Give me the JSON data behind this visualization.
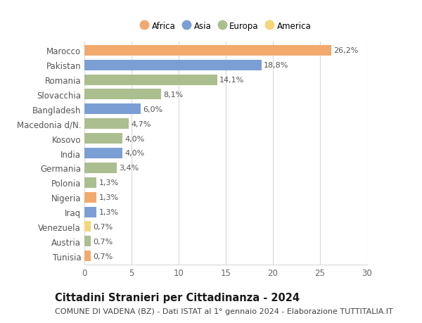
{
  "countries": [
    "Marocco",
    "Pakistan",
    "Romania",
    "Slovacchia",
    "Bangladesh",
    "Macedonia d/N.",
    "Kosovo",
    "India",
    "Germania",
    "Polonia",
    "Nigeria",
    "Iraq",
    "Venezuela",
    "Austria",
    "Tunisia"
  ],
  "values": [
    26.2,
    18.8,
    14.1,
    8.1,
    6.0,
    4.7,
    4.0,
    4.0,
    3.4,
    1.3,
    1.3,
    1.3,
    0.7,
    0.7,
    0.7
  ],
  "labels": [
    "26,2%",
    "18,8%",
    "14,1%",
    "8,1%",
    "6,0%",
    "4,7%",
    "4,0%",
    "4,0%",
    "3,4%",
    "1,3%",
    "1,3%",
    "1,3%",
    "0,7%",
    "0,7%",
    "0,7%"
  ],
  "continents": [
    "Africa",
    "Asia",
    "Europa",
    "Europa",
    "Asia",
    "Europa",
    "Europa",
    "Asia",
    "Europa",
    "Europa",
    "Africa",
    "Asia",
    "America",
    "Europa",
    "Africa"
  ],
  "colors": {
    "Africa": "#F2A96E",
    "Asia": "#7B9FD4",
    "Europa": "#ABBE8F",
    "America": "#F5D67A"
  },
  "legend_order": [
    "Africa",
    "Asia",
    "Europa",
    "America"
  ],
  "title": "Cittadini Stranieri per Cittadinanza - 2024",
  "subtitle": "COMUNE DI VADENA (BZ) - Dati ISTAT al 1° gennaio 2024 - Elaborazione TUTTITALIA.IT",
  "xlim": [
    0,
    30
  ],
  "xticks": [
    0,
    5,
    10,
    15,
    20,
    25,
    30
  ],
  "background_color": "#ffffff",
  "grid_color": "#d8d8d8",
  "bar_height": 0.72,
  "label_fontsize": 8.0,
  "tick_fontsize": 8.5,
  "title_fontsize": 10.5,
  "subtitle_fontsize": 8.0,
  "ytick_color": "#555555",
  "label_color": "#555555"
}
